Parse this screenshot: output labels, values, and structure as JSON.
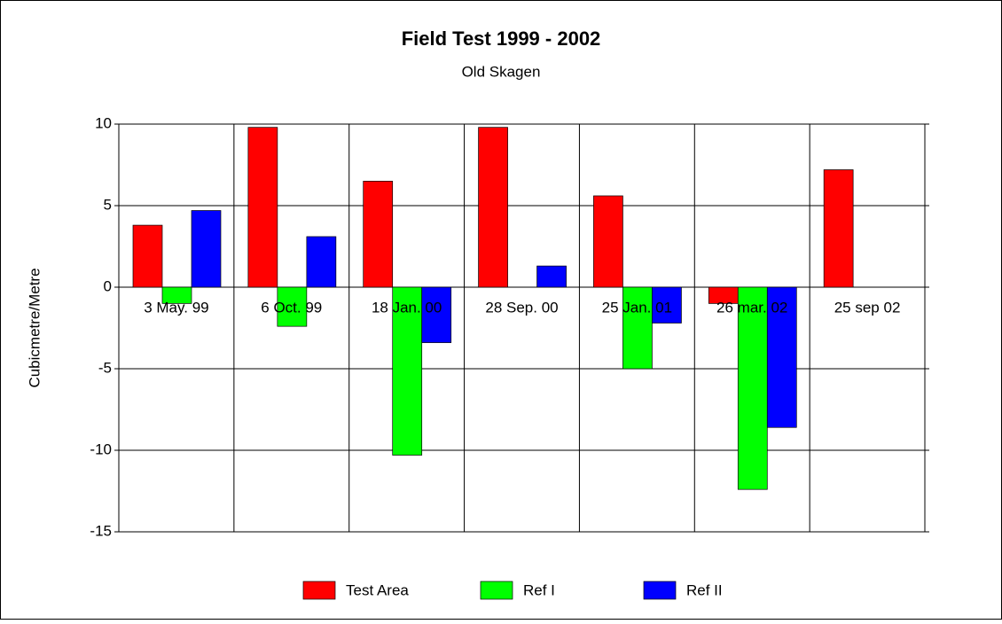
{
  "chart_data": {
    "type": "bar",
    "title": "Field Test 1999 - 2002",
    "subtitle": "Old Skagen",
    "y_label": "Cubicmetre/Metre",
    "categories": [
      "3 May. 99",
      "6 Oct. 99",
      "18 Jan. 00",
      "28 Sep. 00",
      "25 Jan. 01",
      "26 mar. 02",
      "25 sep 02"
    ],
    "series": [
      {
        "name": "Test Area",
        "color": "#ff0000",
        "values": [
          3.8,
          9.8,
          6.5,
          9.8,
          5.6,
          -1,
          7.2
        ]
      },
      {
        "name": "Ref I",
        "color": "#00ff00",
        "values": [
          -1,
          -2.4,
          -10.3,
          null,
          -5,
          -12.4,
          null
        ]
      },
      {
        "name": "Ref II",
        "color": "#0000ff",
        "values": [
          4.7,
          3.1,
          -3.4,
          1.3,
          -2.2,
          -8.6,
          null
        ]
      }
    ],
    "ylim": [
      -15,
      10
    ],
    "yticks": [
      -15,
      -10,
      -5,
      0,
      5,
      10
    ],
    "grid": true
  }
}
